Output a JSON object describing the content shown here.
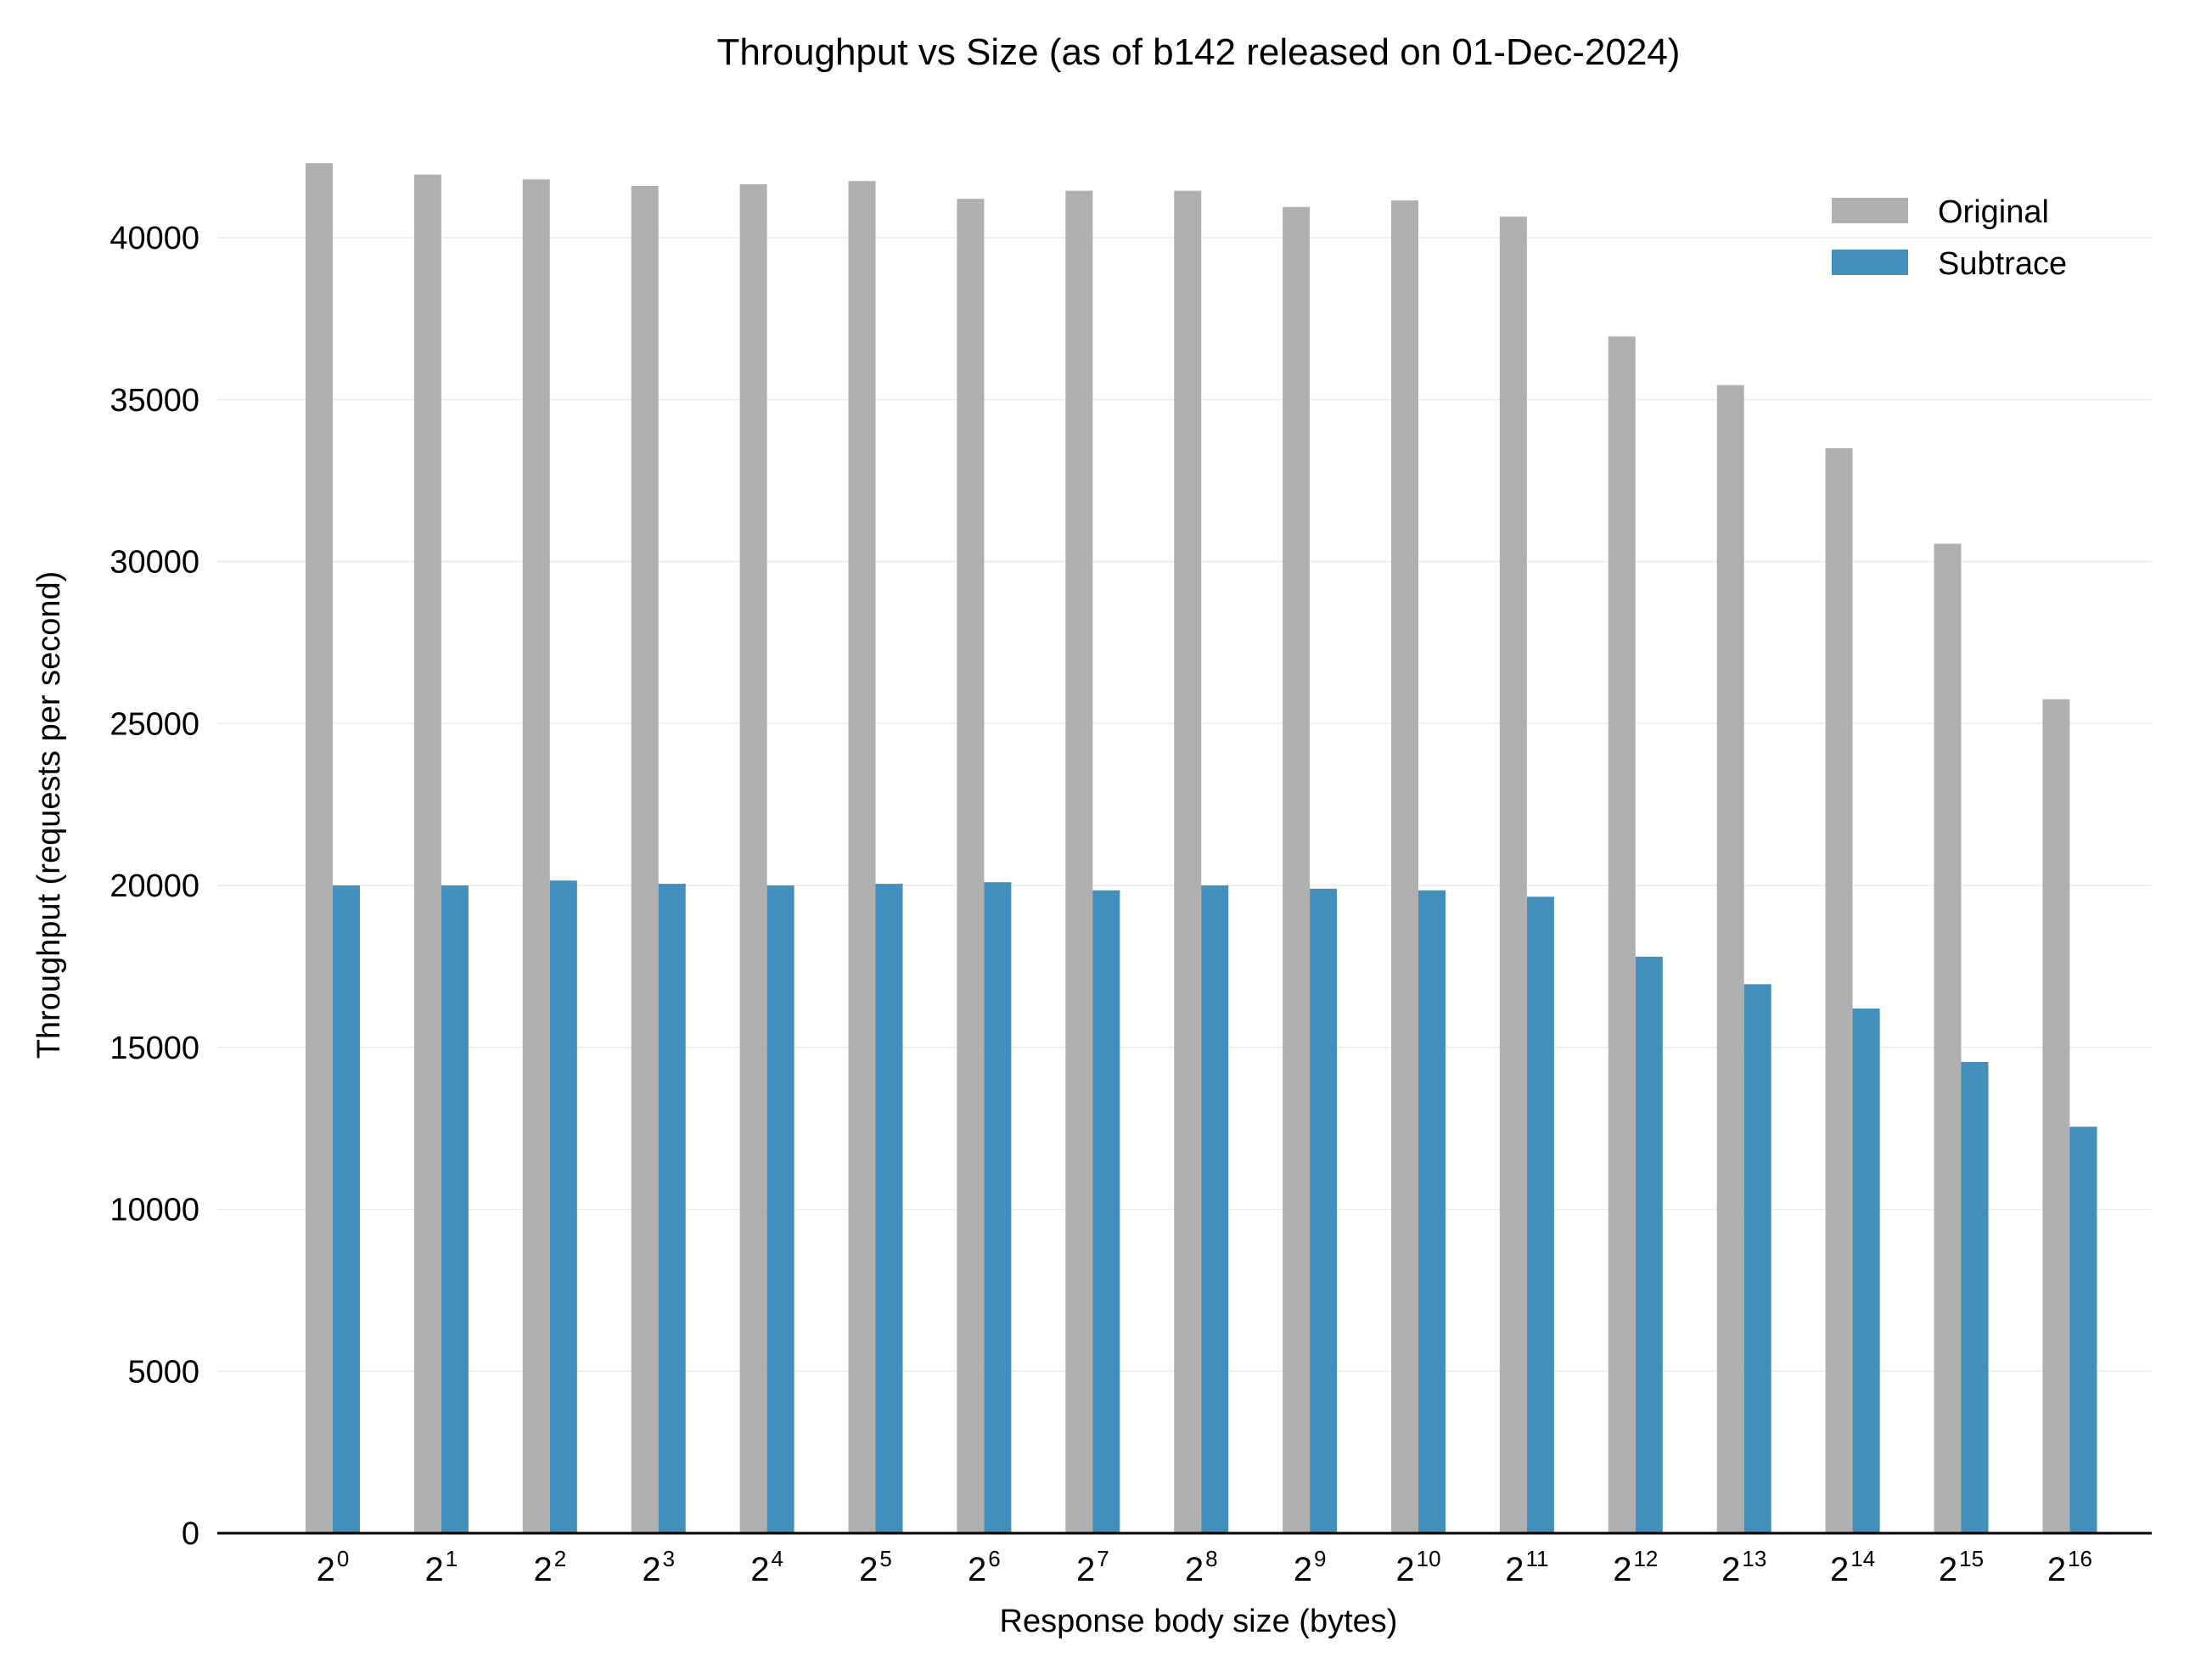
{
  "chart_data": {
    "type": "bar",
    "title": "Throughput vs Size (as of b142 released on 01-Dec-2024)",
    "xlabel": "Response body size (bytes)",
    "ylabel": "Throughput (requests per second)",
    "categories": [
      {
        "base": "2",
        "exp": "0"
      },
      {
        "base": "2",
        "exp": "1"
      },
      {
        "base": "2",
        "exp": "2"
      },
      {
        "base": "2",
        "exp": "3"
      },
      {
        "base": "2",
        "exp": "4"
      },
      {
        "base": "2",
        "exp": "5"
      },
      {
        "base": "2",
        "exp": "6"
      },
      {
        "base": "2",
        "exp": "7"
      },
      {
        "base": "2",
        "exp": "8"
      },
      {
        "base": "2",
        "exp": "9"
      },
      {
        "base": "2",
        "exp": "10"
      },
      {
        "base": "2",
        "exp": "11"
      },
      {
        "base": "2",
        "exp": "12"
      },
      {
        "base": "2",
        "exp": "13"
      },
      {
        "base": "2",
        "exp": "14"
      },
      {
        "base": "2",
        "exp": "15"
      },
      {
        "base": "2",
        "exp": "16"
      }
    ],
    "series": [
      {
        "name": "Original",
        "color": "#b0b0b0",
        "values": [
          42300,
          41950,
          41800,
          41600,
          41650,
          41750,
          41200,
          41450,
          41450,
          40950,
          41150,
          40650,
          36950,
          35450,
          33500,
          30550,
          25750
        ]
      },
      {
        "name": "Subtrace",
        "color": "#418fba",
        "values": [
          20000,
          20000,
          20150,
          20050,
          20000,
          20050,
          20100,
          19850,
          20000,
          19900,
          19850,
          19650,
          17800,
          16950,
          16200,
          14550,
          12550
        ]
      }
    ],
    "yticks": [
      "0",
      "5000",
      "10000",
      "15000",
      "20000",
      "25000",
      "30000",
      "35000",
      "40000"
    ],
    "ylim": [
      0,
      42300
    ],
    "grid": true,
    "legend_position": "top-right"
  }
}
